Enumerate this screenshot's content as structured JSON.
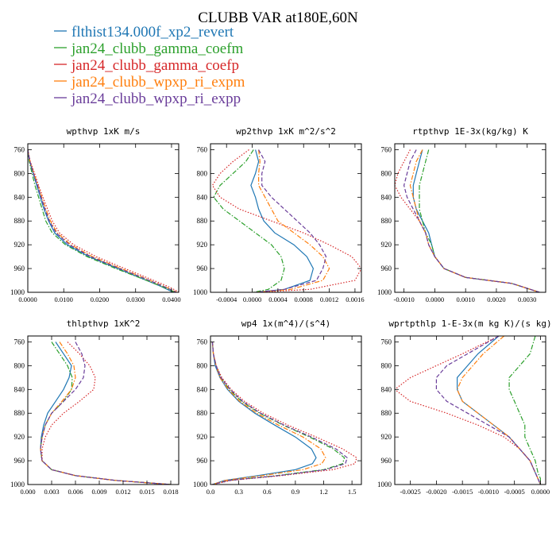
{
  "figure": {
    "title": "CLUBB VAR at180E,60N",
    "legend": [
      {
        "label": "flthist134.000f_xp2_revert",
        "color": "#1f77b4",
        "dash": "solid"
      },
      {
        "label": "jan24_clubb_gamma_coefm",
        "color": "#2ca02c",
        "dash": "dashdot"
      },
      {
        "label": "jan24_clubb_gamma_coefp",
        "color": "#d62728",
        "dash": "dot"
      },
      {
        "label": "jan24_clubb_wpxp_ri_expm",
        "color": "#ff7f0e",
        "dash": "dashdot"
      },
      {
        "label": "jan24_clubb_wpxp_ri_expp",
        "color": "#6a3d9a",
        "dash": "dash"
      }
    ]
  },
  "chart_data": [
    {
      "type": "line",
      "title": "wpthvp  1xK m/s",
      "ylim": [
        1000,
        750
      ],
      "yticks": [
        760,
        800,
        840,
        880,
        920,
        960,
        1000
      ],
      "xlim": [
        0,
        0.042
      ],
      "xticks": [
        0,
        0.01,
        0.02,
        0.03,
        0.04
      ],
      "xticklabels": [
        "0.0000",
        "0.0100",
        "0.0200",
        "0.0300",
        "0.0400"
      ],
      "y": [
        760,
        780,
        800,
        820,
        840,
        860,
        880,
        900,
        920,
        940,
        960,
        980,
        990,
        1000
      ],
      "series": [
        {
          "values": [
            0,
            0.0005,
            0.0015,
            0.0025,
            0.0035,
            0.0045,
            0.0058,
            0.0075,
            0.011,
            0.017,
            0.025,
            0.033,
            0.037,
            0.0405
          ]
        },
        {
          "values": [
            0,
            0.0004,
            0.0012,
            0.002,
            0.003,
            0.004,
            0.005,
            0.0068,
            0.0105,
            0.0165,
            0.0245,
            0.033,
            0.0372,
            0.041
          ]
        },
        {
          "values": [
            0,
            0.0007,
            0.0019,
            0.003,
            0.0042,
            0.0055,
            0.0068,
            0.0088,
            0.0128,
            0.019,
            0.027,
            0.035,
            0.039,
            0.0422
          ]
        },
        {
          "values": [
            0,
            0.0006,
            0.0017,
            0.0028,
            0.0039,
            0.005,
            0.0063,
            0.0082,
            0.012,
            0.018,
            0.026,
            0.034,
            0.038,
            0.0415
          ]
        },
        {
          "values": [
            0,
            0.0006,
            0.0016,
            0.0027,
            0.0037,
            0.0048,
            0.006,
            0.0079,
            0.0116,
            0.0175,
            0.0255,
            0.0338,
            0.0378,
            0.0413
          ]
        }
      ]
    },
    {
      "type": "line",
      "title": "wp2thvp  1xK m^2/s^2",
      "ylim": [
        1000,
        750
      ],
      "yticks": [
        760,
        800,
        840,
        880,
        920,
        960,
        1000
      ],
      "xlim": [
        -0.00065,
        0.0017
      ],
      "xticks": [
        -0.0004,
        0,
        0.0004,
        0.0008,
        0.0012,
        0.0016
      ],
      "xticklabels": [
        "-0.0004",
        "0.0000",
        "0.0004",
        "0.0008",
        "0.0012",
        "0.0016"
      ],
      "y": [
        760,
        780,
        800,
        820,
        840,
        860,
        880,
        900,
        920,
        940,
        960,
        980,
        995,
        1000
      ],
      "series": [
        {
          "values": [
            5e-05,
            0.0001,
            5e-05,
            -2e-05,
            5e-05,
            0.0001,
            0.00018,
            0.00035,
            0.00065,
            0.00085,
            0.00095,
            0.0009,
            0.0005,
            5e-05
          ]
        },
        {
          "values": [
            2e-05,
            -0.0001,
            -0.0003,
            -0.0005,
            -0.0006,
            -0.00045,
            -0.0002,
            5e-05,
            0.0003,
            0.00045,
            0.0005,
            0.00045,
            0.00025,
            2e-05
          ]
        },
        {
          "values": [
            -5e-05,
            -0.0003,
            -0.0005,
            -0.00062,
            -0.0005,
            -0.0002,
            0.0003,
            0.0008,
            0.0012,
            0.00155,
            0.0017,
            0.0016,
            0.0009,
            0.0001
          ]
        },
        {
          "values": [
            0.0001,
            0.00012,
            0.0001,
            0.0001,
            0.0002,
            0.0003,
            0.0004,
            0.00065,
            0.0009,
            0.0011,
            0.0012,
            0.0011,
            0.0006,
            5e-05
          ]
        },
        {
          "values": [
            0.0001,
            0.0002,
            0.00015,
            0.00015,
            0.0003,
            0.0005,
            0.0007,
            0.0009,
            0.00105,
            0.00115,
            0.0011,
            0.001,
            0.0005,
            5e-05
          ]
        }
      ]
    },
    {
      "type": "line",
      "title": "rtpthvp  1E-3x(kg/kg) K",
      "ylim": [
        1000,
        750
      ],
      "yticks": [
        760,
        800,
        840,
        880,
        920,
        960,
        1000
      ],
      "xlim": [
        -0.0013,
        0.0036
      ],
      "xticks": [
        -0.001,
        0,
        0.001,
        0.002,
        0.003
      ],
      "xticklabels": [
        "-0.0010",
        "0.0000",
        "0.0010",
        "0.0020",
        "0.0030"
      ],
      "y": [
        760,
        780,
        800,
        820,
        840,
        860,
        880,
        900,
        920,
        940,
        960,
        975,
        985,
        1000
      ],
      "series": [
        {
          "values": [
            -0.0004,
            -0.0005,
            -0.0006,
            -0.0007,
            -0.0007,
            -0.0006,
            -0.0004,
            -0.0002,
            -0.0001,
            0,
            0.0003,
            0.001,
            0.0025,
            0.0034
          ]
        },
        {
          "values": [
            -0.0002,
            -0.0003,
            -0.0004,
            -0.0005,
            -0.0005,
            -0.0005,
            -0.0004,
            -0.0003,
            -0.0001,
            0,
            0.0003,
            0.001,
            0.0025,
            0.0034
          ]
        },
        {
          "values": [
            -0.0008,
            -0.001,
            -0.0012,
            -0.0013,
            -0.0011,
            -0.0008,
            -0.0005,
            -0.0003,
            -0.0002,
            0,
            0.0003,
            0.001,
            0.0025,
            0.0034
          ]
        },
        {
          "values": [
            -0.0004,
            -0.0006,
            -0.0007,
            -0.0008,
            -0.0007,
            -0.0006,
            -0.0005,
            -0.0003,
            -0.0002,
            0,
            0.0003,
            0.001,
            0.0025,
            0.0034
          ]
        },
        {
          "values": [
            -0.0006,
            -0.0008,
            -0.0009,
            -0.001,
            -0.0009,
            -0.0007,
            -0.0005,
            -0.0003,
            -0.0002,
            0,
            0.0003,
            0.001,
            0.0025,
            0.0034
          ]
        }
      ]
    },
    {
      "type": "line",
      "title": "thlpthvp  1xK^2",
      "ylim": [
        1000,
        750
      ],
      "yticks": [
        760,
        800,
        840,
        880,
        920,
        960,
        1000
      ],
      "xlim": [
        0,
        0.019
      ],
      "xticks": [
        0,
        0.003,
        0.006,
        0.009,
        0.012,
        0.015,
        0.018
      ],
      "xticklabels": [
        "0.000",
        "0.003",
        "0.006",
        "0.009",
        "0.012",
        "0.015",
        "0.018"
      ],
      "y": [
        760,
        780,
        800,
        820,
        840,
        860,
        880,
        900,
        920,
        940,
        960,
        975,
        985,
        993,
        1000
      ],
      "series": [
        {
          "values": [
            0.0035,
            0.0045,
            0.0055,
            0.0052,
            0.0045,
            0.0035,
            0.0025,
            0.002,
            0.0017,
            0.0016,
            0.0018,
            0.003,
            0.006,
            0.011,
            0.018
          ]
        },
        {
          "values": [
            0.003,
            0.004,
            0.005,
            0.0056,
            0.0055,
            0.0045,
            0.003,
            0.0022,
            0.0018,
            0.0016,
            0.0018,
            0.003,
            0.006,
            0.011,
            0.018
          ]
        },
        {
          "values": [
            0.005,
            0.0065,
            0.0078,
            0.0085,
            0.0083,
            0.0065,
            0.0045,
            0.003,
            0.0022,
            0.0018,
            0.0018,
            0.003,
            0.006,
            0.011,
            0.018
          ]
        },
        {
          "values": [
            0.004,
            0.005,
            0.0058,
            0.006,
            0.0055,
            0.0043,
            0.003,
            0.0022,
            0.0018,
            0.0016,
            0.0018,
            0.003,
            0.006,
            0.011,
            0.018
          ]
        },
        {
          "values": [
            0.006,
            0.0068,
            0.0072,
            0.007,
            0.006,
            0.0045,
            0.003,
            0.0022,
            0.0018,
            0.0016,
            0.0018,
            0.003,
            0.006,
            0.011,
            0.018
          ]
        }
      ]
    },
    {
      "type": "line",
      "title": "wp4  1x(m^4)/(s^4)",
      "ylim": [
        1000,
        750
      ],
      "yticks": [
        760,
        800,
        840,
        880,
        920,
        960,
        1000
      ],
      "xlim": [
        0,
        1.6
      ],
      "xticks": [
        0,
        0.3,
        0.6,
        0.9,
        1.2,
        1.5
      ],
      "xticklabels": [
        "0.0",
        "0.3",
        "0.6",
        "0.9",
        "1.2",
        "1.5"
      ],
      "y": [
        760,
        780,
        800,
        820,
        840,
        860,
        880,
        900,
        920,
        940,
        955,
        965,
        975,
        985,
        993,
        1000
      ],
      "series": [
        {
          "values": [
            0.02,
            0.03,
            0.05,
            0.1,
            0.18,
            0.3,
            0.47,
            0.68,
            0.9,
            1.07,
            1.12,
            1.08,
            0.9,
            0.5,
            0.15,
            0.02
          ]
        },
        {
          "values": [
            0.02,
            0.03,
            0.06,
            0.11,
            0.2,
            0.33,
            0.52,
            0.77,
            1.05,
            1.3,
            1.42,
            1.4,
            1.2,
            0.7,
            0.2,
            0.02
          ]
        },
        {
          "values": [
            0.02,
            0.03,
            0.06,
            0.12,
            0.22,
            0.36,
            0.56,
            0.82,
            1.12,
            1.4,
            1.55,
            1.53,
            1.3,
            0.75,
            0.22,
            0.02
          ]
        },
        {
          "values": [
            0.02,
            0.03,
            0.06,
            0.1,
            0.19,
            0.31,
            0.49,
            0.72,
            0.98,
            1.17,
            1.22,
            1.18,
            0.98,
            0.55,
            0.16,
            0.02
          ]
        },
        {
          "values": [
            0.02,
            0.03,
            0.06,
            0.11,
            0.21,
            0.34,
            0.53,
            0.78,
            1.07,
            1.33,
            1.45,
            1.43,
            1.22,
            0.72,
            0.2,
            0.02
          ]
        }
      ]
    },
    {
      "type": "line",
      "title": "wprtpthlp  1-E-3x(m kg K)/(s kg)",
      "ylim": [
        1000,
        750
      ],
      "yticks": [
        760,
        800,
        840,
        880,
        920,
        960,
        1000
      ],
      "xlim": [
        -0.0028,
        0.0001
      ],
      "xticks": [
        -0.0025,
        -0.002,
        -0.0015,
        -0.001,
        -0.0005,
        0
      ],
      "xticklabels": [
        "-0.0025",
        "-0.0020",
        "-0.0015",
        "-0.0010",
        "-0.0005",
        "0.0000"
      ],
      "y": [
        750,
        780,
        800,
        820,
        840,
        860,
        880,
        900,
        920,
        940,
        960,
        980,
        990,
        1000
      ],
      "series": [
        {
          "values": [
            -0.0008,
            -0.0012,
            -0.0014,
            -0.0016,
            -0.0016,
            -0.0015,
            -0.0012,
            -0.0009,
            -0.0006,
            -0.0004,
            -0.0002,
            -0.0001,
            -5e-05,
            0
          ]
        },
        {
          "values": [
            -0.0001,
            -0.0002,
            -0.0004,
            -0.0006,
            -0.0006,
            -0.0005,
            -0.0004,
            -0.0003,
            -0.0003,
            -0.0002,
            -0.0001,
            -5e-05,
            0,
            0
          ]
        },
        {
          "values": [
            -0.0008,
            -0.0015,
            -0.002,
            -0.0025,
            -0.0028,
            -0.0025,
            -0.0018,
            -0.0012,
            -0.0007,
            -0.0004,
            -0.0002,
            -0.0001,
            -5e-05,
            0
          ]
        },
        {
          "values": [
            -0.0007,
            -0.0011,
            -0.0013,
            -0.0015,
            -0.0016,
            -0.0015,
            -0.0012,
            -0.0009,
            -0.0006,
            -0.0004,
            -0.0002,
            -0.0001,
            -5e-05,
            0
          ]
        },
        {
          "values": [
            -0.0008,
            -0.0014,
            -0.0018,
            -0.002,
            -0.002,
            -0.0018,
            -0.0014,
            -0.001,
            -0.0006,
            -0.0004,
            -0.0002,
            -0.0001,
            -5e-05,
            0
          ]
        }
      ]
    }
  ]
}
